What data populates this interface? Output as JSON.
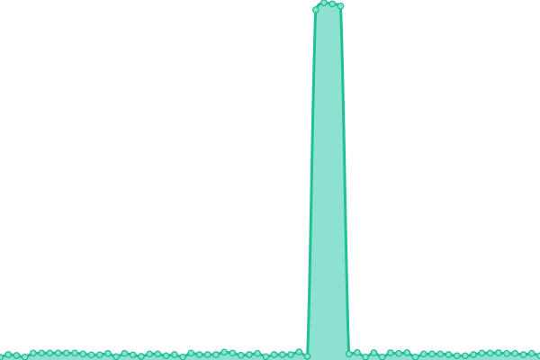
{
  "chart_data": {
    "type": "area",
    "title": "",
    "xlabel": "",
    "ylabel": "",
    "grid": false,
    "axes_visible": false,
    "markers": true,
    "smooth": true,
    "x": [
      0,
      1,
      2,
      3,
      4,
      5,
      6,
      7,
      8,
      9,
      10,
      11,
      12,
      13,
      14,
      15,
      16,
      17,
      18,
      19,
      20,
      21,
      22,
      23,
      24,
      25,
      26,
      27,
      28,
      29,
      30,
      31,
      32,
      33,
      34,
      35,
      36,
      37,
      38,
      39,
      40,
      41,
      42,
      43,
      44,
      45,
      46,
      47,
      48,
      49,
      50,
      51,
      52,
      53,
      54,
      55,
      56,
      57,
      58,
      59,
      60,
      61,
      62,
      63,
      64,
      65
    ],
    "xlim": [
      0,
      65
    ],
    "ylim": [
      0,
      400
    ],
    "series": [
      {
        "values": [
          3,
          6,
          5,
          3.3,
          7.7,
          7.7,
          7.7,
          7.7,
          7.7,
          7.7,
          6.7,
          5.7,
          5.7,
          7.3,
          3.7,
          7.3,
          5.7,
          4,
          6.7,
          6.7,
          4.7,
          6,
          3.3,
          7.7,
          6,
          6,
          6,
          8.7,
          7.7,
          5.3,
          6,
          7.3,
          3.7,
          6,
          6,
          6,
          9,
          4,
          389,
          397,
          395.7,
          393.3,
          6.7,
          8.3,
          3.3,
          8,
          3.3,
          8,
          7.3,
          8,
          3.3,
          6.7,
          6.7,
          6.7,
          6,
          4.7,
          4.7,
          6,
          7.7,
          7.7,
          8,
          7.3,
          7.3,
          6,
          7.3,
          4.7
        ],
        "color": "#20bf95",
        "fill": "#8ce1d1"
      }
    ]
  }
}
